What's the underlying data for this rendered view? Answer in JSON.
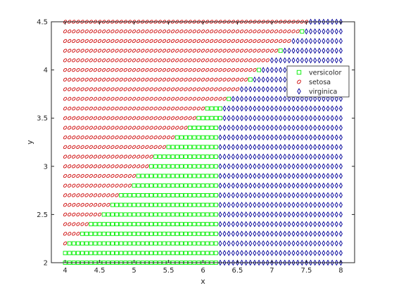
{
  "chart_data": {
    "type": "scatter",
    "title": "",
    "xlabel": "x",
    "ylabel": "y",
    "xlim": [
      3.8,
      8.2
    ],
    "ylim": [
      2.0,
      4.5
    ],
    "grid": false,
    "legend_position": "top-right",
    "x_ticks": [
      4,
      4.5,
      5,
      5.5,
      6,
      6.5,
      7,
      7.5,
      8
    ],
    "x_tick_labels": [
      "4",
      "4.5",
      "5",
      "5.5",
      "6",
      "6.5",
      "7",
      "7.5",
      "8"
    ],
    "y_ticks": [
      2,
      2.5,
      3,
      3.5,
      4,
      4.5
    ],
    "y_tick_labels": [
      "2",
      "2.5",
      "3",
      "3.5",
      "4",
      "4.5"
    ],
    "grid_x": {
      "start": 4.0,
      "step": 0.0625,
      "count": 65
    },
    "grid_y": {
      "start": 2.0,
      "step": 0.1,
      "count": 26
    },
    "series": [
      {
        "name": "versicolor",
        "marker": "square",
        "color": "#00ee00"
      },
      {
        "name": "setosa",
        "marker": "circle",
        "color": "#cc0000"
      },
      {
        "name": "virginica",
        "marker": "diamond",
        "color": "#000099"
      }
    ],
    "region_boundaries": [
      {
        "y": 2.0,
        "setosa_max_x": 3.99,
        "virginica_min_x": 6.2
      },
      {
        "y": 2.1,
        "setosa_max_x": 3.99,
        "virginica_min_x": 6.2
      },
      {
        "y": 2.2,
        "setosa_max_x": 4.0,
        "virginica_min_x": 6.2
      },
      {
        "y": 2.3,
        "setosa_max_x": 4.2,
        "virginica_min_x": 6.2
      },
      {
        "y": 2.4,
        "setosa_max_x": 4.35,
        "virginica_min_x": 6.2
      },
      {
        "y": 2.5,
        "setosa_max_x": 4.55,
        "virginica_min_x": 6.2
      },
      {
        "y": 2.6,
        "setosa_max_x": 4.65,
        "virginica_min_x": 6.25
      },
      {
        "y": 2.7,
        "setosa_max_x": 4.8,
        "virginica_min_x": 6.25
      },
      {
        "y": 2.8,
        "setosa_max_x": 4.95,
        "virginica_min_x": 6.25
      },
      {
        "y": 2.9,
        "setosa_max_x": 5.05,
        "virginica_min_x": 6.25
      },
      {
        "y": 3.0,
        "setosa_max_x": 5.2,
        "virginica_min_x": 6.25
      },
      {
        "y": 3.1,
        "setosa_max_x": 5.3,
        "virginica_min_x": 6.25
      },
      {
        "y": 3.2,
        "setosa_max_x": 5.45,
        "virginica_min_x": 6.25
      },
      {
        "y": 3.3,
        "setosa_max_x": 5.6,
        "virginica_min_x": 6.25
      },
      {
        "y": 3.4,
        "setosa_max_x": 5.75,
        "virginica_min_x": 6.25
      },
      {
        "y": 3.5,
        "setosa_max_x": 5.9,
        "virginica_min_x": 6.3
      },
      {
        "y": 3.6,
        "setosa_max_x": 6.05,
        "virginica_min_x": 6.3
      },
      {
        "y": 3.7,
        "setosa_max_x": 6.35,
        "virginica_min_x": 6.4
      },
      {
        "y": 3.8,
        "setosa_max_x": 6.5,
        "virginica_min_x": 6.55
      },
      {
        "y": 3.9,
        "setosa_max_x": 6.65,
        "virginica_min_x": 6.7
      },
      {
        "y": 4.0,
        "setosa_max_x": 6.8,
        "virginica_min_x": 6.85
      },
      {
        "y": 4.1,
        "setosa_max_x": 6.95,
        "virginica_min_x": 7.0
      },
      {
        "y": 4.2,
        "setosa_max_x": 7.1,
        "virginica_min_x": 7.15
      },
      {
        "y": 4.3,
        "setosa_max_x": 7.25,
        "virginica_min_x": 7.3
      },
      {
        "y": 4.4,
        "setosa_max_x": 7.4,
        "virginica_min_x": 7.45
      },
      {
        "y": 4.5,
        "setosa_max_x": 7.5,
        "virginica_min_x": 7.55
      }
    ]
  }
}
